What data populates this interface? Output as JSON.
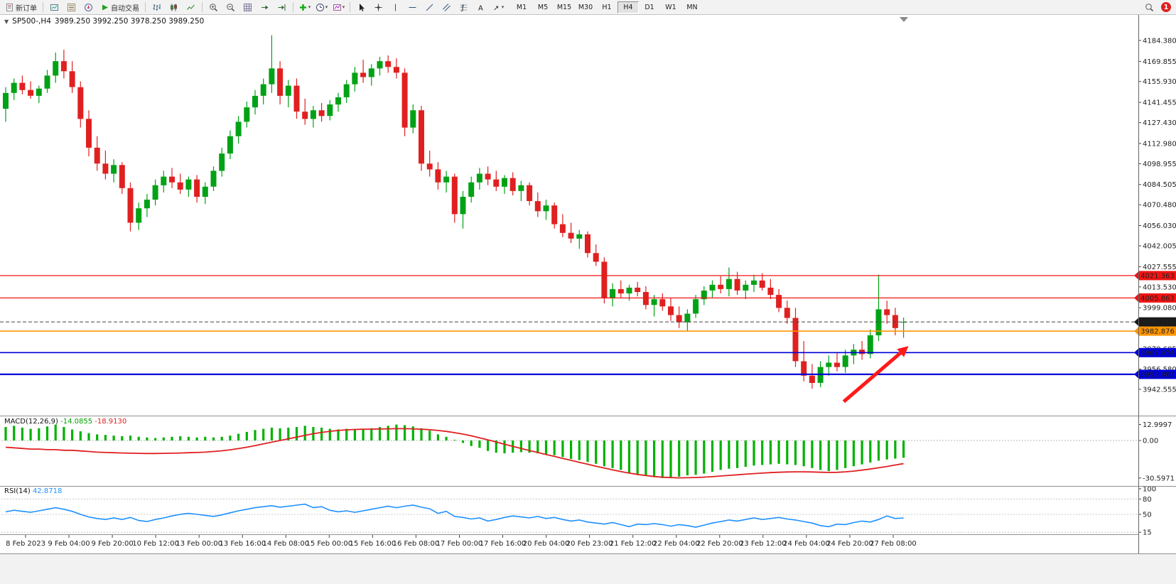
{
  "toolbar": {
    "new_order_label": "新订单",
    "auto_trading_label": "自动交易",
    "timeframes": [
      "M1",
      "M5",
      "M15",
      "M30",
      "H1",
      "H4",
      "D1",
      "W1",
      "MN"
    ],
    "active_timeframe": "H4",
    "notification_count": "1"
  },
  "chart_header": {
    "symbol_timeframe": "SP500-,H4",
    "ohlc_values": "3989.250 3992.250 3978.250 3989.250"
  },
  "chart_data": {
    "type": "candlestick",
    "symbol": "SP500-",
    "timeframe": "H4",
    "current_bar": {
      "open": 3989.25,
      "high": 3992.25,
      "low": 3978.25,
      "close": 3989.25
    },
    "colors": {
      "up": "#00A215",
      "down": "#E02020"
    },
    "ylim": [
      3925.3,
      4193.7
    ],
    "y_axis_labels": [
      "4184.380",
      "4169.855",
      "4155.930",
      "4141.455",
      "4127.430",
      "4112.980",
      "4098.955",
      "4084.505",
      "4070.480",
      "4056.030",
      "4042.005",
      "4027.555",
      "4013.530",
      "3999.080",
      "3985.055",
      "3970.605",
      "3956.580",
      "3942.555"
    ],
    "x_labels": [
      "8 Feb 2023",
      "9 Feb 04:00",
      "9 Feb 20:00",
      "10 Feb 12:00",
      "13 Feb 00:00",
      "13 Feb 16:00",
      "14 Feb 08:00",
      "15 Feb 00:00",
      "15 Feb 16:00",
      "16 Feb 08:00",
      "17 Feb 00:00",
      "17 Feb 16:00",
      "20 Feb 04:00",
      "20 Feb 23:00",
      "21 Feb 12:00",
      "22 Feb 04:00",
      "22 Feb 20:00",
      "23 Feb 12:00",
      "24 Feb 04:00",
      "24 Feb 20:00",
      "27 Feb 08:00"
    ],
    "horizontal_lines": [
      {
        "label": "4021.363",
        "price": 4021.363,
        "color": "#F01414",
        "width": 1.3
      },
      {
        "label": "4005.863",
        "price": 4005.863,
        "color": "#F01414",
        "width": 1.3
      },
      {
        "label": "3989.250",
        "price": 3989.25,
        "color": "#444444",
        "width": 1,
        "style": "dashed",
        "badge": "#1a1a1a"
      },
      {
        "label": "3982.876",
        "price": 3982.876,
        "color": "#FF9500",
        "width": 1.6
      },
      {
        "label": "3967.974",
        "price": 3967.974,
        "color": "#0000D8",
        "width": 1.6
      },
      {
        "label": "3952.905",
        "price": 3952.905,
        "color": "#0000D8",
        "width": 2.2
      }
    ],
    "trend_arrow": {
      "from_bar": 100.8,
      "from_price": 3934,
      "to_bar": 108.6,
      "to_price": 3972.5,
      "color": "#FF1A1A"
    },
    "candles_ohlc": [
      [
        4137,
        4152,
        4128,
        4148
      ],
      [
        4148,
        4158,
        4143,
        4155
      ],
      [
        4155,
        4160,
        4147,
        4150
      ],
      [
        4150,
        4156,
        4144,
        4146
      ],
      [
        4146,
        4153,
        4141,
        4151
      ],
      [
        4151,
        4164,
        4148,
        4160
      ],
      [
        4160,
        4176,
        4155,
        4170
      ],
      [
        4170,
        4178,
        4158,
        4163
      ],
      [
        4163,
        4170,
        4148,
        4152
      ],
      [
        4152,
        4156,
        4124,
        4130
      ],
      [
        4130,
        4136,
        4104,
        4110
      ],
      [
        4110,
        4118,
        4094,
        4099
      ],
      [
        4099,
        4108,
        4088,
        4092
      ],
      [
        4092,
        4102,
        4086,
        4098
      ],
      [
        4098,
        4100,
        4078,
        4082
      ],
      [
        4082,
        4086,
        4052,
        4058
      ],
      [
        4058,
        4072,
        4053,
        4068
      ],
      [
        4068,
        4078,
        4062,
        4074
      ],
      [
        4074,
        4088,
        4070,
        4084
      ],
      [
        4084,
        4094,
        4079,
        4090
      ],
      [
        4090,
        4096,
        4082,
        4086
      ],
      [
        4086,
        4092,
        4078,
        4081
      ],
      [
        4081,
        4090,
        4076,
        4088
      ],
      [
        4088,
        4091,
        4072,
        4076
      ],
      [
        4076,
        4086,
        4071,
        4083
      ],
      [
        4083,
        4097,
        4080,
        4094
      ],
      [
        4094,
        4110,
        4090,
        4106
      ],
      [
        4106,
        4122,
        4102,
        4118
      ],
      [
        4118,
        4132,
        4113,
        4128
      ],
      [
        4128,
        4142,
        4124,
        4138
      ],
      [
        4138,
        4150,
        4133,
        4146
      ],
      [
        4146,
        4158,
        4140,
        4154
      ],
      [
        4154,
        4188,
        4148,
        4165
      ],
      [
        4165,
        4170,
        4140,
        4146
      ],
      [
        4146,
        4157,
        4138,
        4153
      ],
      [
        4153,
        4158,
        4130,
        4135
      ],
      [
        4135,
        4144,
        4126,
        4130
      ],
      [
        4130,
        4139,
        4124,
        4136
      ],
      [
        4136,
        4141,
        4128,
        4132
      ],
      [
        4132,
        4143,
        4129,
        4140
      ],
      [
        4140,
        4148,
        4135,
        4145
      ],
      [
        4145,
        4157,
        4141,
        4154
      ],
      [
        4154,
        4166,
        4149,
        4162
      ],
      [
        4162,
        4171,
        4155,
        4159
      ],
      [
        4159,
        4168,
        4153,
        4165
      ],
      [
        4165,
        4173,
        4160,
        4170
      ],
      [
        4170,
        4174,
        4162,
        4166
      ],
      [
        4166,
        4172,
        4158,
        4162
      ],
      [
        4162,
        4165,
        4118,
        4124
      ],
      [
        4124,
        4140,
        4120,
        4136
      ],
      [
        4136,
        4139,
        4094,
        4099
      ],
      [
        4099,
        4108,
        4090,
        4095
      ],
      [
        4095,
        4100,
        4081,
        4086
      ],
      [
        4086,
        4094,
        4079,
        4090
      ],
      [
        4090,
        4092,
        4058,
        4064
      ],
      [
        4064,
        4080,
        4054,
        4076
      ],
      [
        4076,
        4090,
        4072,
        4086
      ],
      [
        4086,
        4096,
        4081,
        4092
      ],
      [
        4092,
        4097,
        4084,
        4088
      ],
      [
        4088,
        4094,
        4080,
        4083
      ],
      [
        4083,
        4091,
        4078,
        4089
      ],
      [
        4089,
        4093,
        4077,
        4080
      ],
      [
        4080,
        4087,
        4073,
        4084
      ],
      [
        4084,
        4086,
        4070,
        4073
      ],
      [
        4073,
        4079,
        4062,
        4066
      ],
      [
        4066,
        4074,
        4060,
        4070
      ],
      [
        4070,
        4072,
        4054,
        4057
      ],
      [
        4057,
        4064,
        4048,
        4051
      ],
      [
        4051,
        4058,
        4044,
        4047
      ],
      [
        4047,
        4053,
        4040,
        4050
      ],
      [
        4050,
        4052,
        4034,
        4037
      ],
      [
        4037,
        4043,
        4028,
        4031
      ],
      [
        4031,
        4034,
        4002,
        4006
      ],
      [
        4006,
        4016,
        4000,
        4012
      ],
      [
        4012,
        4018,
        4006,
        4009
      ],
      [
        4009,
        4015,
        4004,
        4013
      ],
      [
        4013,
        4017,
        4007,
        4010
      ],
      [
        4010,
        4014,
        3998,
        4001
      ],
      [
        4001,
        4008,
        3993,
        4005
      ],
      [
        4005,
        4009,
        3997,
        4000
      ],
      [
        4000,
        4006,
        3990,
        3994
      ],
      [
        3994,
        4000,
        3985,
        3989
      ],
      [
        3989,
        3998,
        3983,
        3995
      ],
      [
        3995,
        4008,
        3992,
        4005
      ],
      [
        4005,
        4014,
        4001,
        4011
      ],
      [
        4011,
        4018,
        4006,
        4015
      ],
      [
        4015,
        4021,
        4009,
        4012
      ],
      [
        4012,
        4027,
        4007,
        4019
      ],
      [
        4019,
        4024,
        4008,
        4011
      ],
      [
        4011,
        4018,
        4005,
        4015
      ],
      [
        4015,
        4022,
        4010,
        4018
      ],
      [
        4018,
        4023,
        4011,
        4013
      ],
      [
        4013,
        4019,
        4005,
        4008
      ],
      [
        4008,
        4012,
        3996,
        3999
      ],
      [
        3999,
        4004,
        3988,
        3992
      ],
      [
        3992,
        3999,
        3958,
        3962
      ],
      [
        3962,
        3976,
        3948,
        3952
      ],
      [
        3952,
        3960,
        3943,
        3947
      ],
      [
        3947,
        3962,
        3944,
        3958
      ],
      [
        3958,
        3966,
        3952,
        3961
      ],
      [
        3961,
        3968,
        3955,
        3958
      ],
      [
        3958,
        3970,
        3954,
        3966
      ],
      [
        3966,
        3974,
        3960,
        3970
      ],
      [
        3970,
        3976,
        3963,
        3967
      ],
      [
        3967,
        3984,
        3964,
        3980
      ],
      [
        3980,
        4022,
        3976,
        3998
      ],
      [
        3998,
        4004,
        3988,
        3994
      ],
      [
        3994,
        3999,
        3980,
        3985
      ],
      [
        3989.25,
        3992.25,
        3978.25,
        3989.25
      ]
    ],
    "indicators": [
      {
        "type": "macd",
        "label": "MACD(12,26,9)",
        "value_main": "-14.0855",
        "value_signal": "-18.9130",
        "y_tick_labels": [
          "12.9997",
          "0.00",
          "-30.5971"
        ],
        "colors": {
          "histogram": "#00B200",
          "signal": "#E02020"
        },
        "histogram": [
          11,
          12,
          10.5,
          9.5,
          10,
          11.5,
          13,
          11,
          9,
          7.5,
          6,
          5,
          4.5,
          4,
          3.5,
          4,
          3,
          2.5,
          2,
          2.5,
          3,
          3.5,
          3,
          2.5,
          3,
          2.5,
          3,
          4,
          5.5,
          7,
          8.5,
          9.5,
          10.5,
          10,
          10.5,
          11,
          12,
          11,
          10.5,
          9.5,
          9,
          9.5,
          9,
          9.5,
          10,
          11,
          12,
          13,
          12.5,
          11.5,
          10,
          8,
          5,
          3,
          0.5,
          -2,
          -4.5,
          -6,
          -8.5,
          -10,
          -10.5,
          -10,
          -9.5,
          -10,
          -10.5,
          -11,
          -12,
          -13.5,
          -15,
          -16,
          -17.5,
          -19,
          -21,
          -22.5,
          -24,
          -26.5,
          -28,
          -29,
          -30,
          -30.6,
          -30,
          -29.5,
          -28.5,
          -28,
          -27,
          -25.5,
          -24,
          -23,
          -22.5,
          -21.5,
          -20.5,
          -20,
          -19.5,
          -19,
          -19.5,
          -20,
          -21,
          -22.5,
          -24,
          -25,
          -24,
          -22.5,
          -21,
          -19.5,
          -18,
          -16.5,
          -15.5,
          -14.8,
          -14.0855
        ],
        "signal": [
          -5.5,
          -6,
          -6.5,
          -7,
          -7,
          -7.5,
          -7.5,
          -8,
          -8,
          -8.5,
          -9,
          -9.5,
          -9.8,
          -10,
          -10.2,
          -10.4,
          -10.5,
          -10.6,
          -10.6,
          -10.5,
          -10.4,
          -10.2,
          -10,
          -9.8,
          -9.5,
          -9,
          -8.4,
          -7.6,
          -6.6,
          -5.5,
          -4.2,
          -2.8,
          -1.4,
          0,
          1.4,
          2.8,
          4.2,
          5.5,
          6.6,
          7.5,
          8.2,
          8.7,
          9,
          9.2,
          9.3,
          9.4,
          9.5,
          9.6,
          9.6,
          9.5,
          9.2,
          8.8,
          8.2,
          7.4,
          6.4,
          5.2,
          3.8,
          2.2,
          0.5,
          -1.2,
          -3,
          -4.8,
          -6.5,
          -8.2,
          -9.8,
          -11.4,
          -13,
          -14.6,
          -16.2,
          -17.8,
          -19.4,
          -21,
          -22.5,
          -24,
          -25.4,
          -26.6,
          -27.7,
          -28.6,
          -29.4,
          -30,
          -30.3,
          -30.5,
          -30.4,
          -30.2,
          -29.9,
          -29.5,
          -29,
          -28.5,
          -28,
          -27.5,
          -27,
          -26.6,
          -26.2,
          -25.9,
          -25.7,
          -25.6,
          -25.6,
          -25.7,
          -25.9,
          -26.1,
          -26,
          -25.6,
          -25,
          -24.2,
          -23.3,
          -22.3,
          -21.2,
          -20,
          -18.913
        ]
      },
      {
        "type": "rsi",
        "label": "RSI(14)",
        "value": "42.8718",
        "color": "#1E90FF",
        "y_tick_labels": [
          "100",
          "80",
          "50",
          "15"
        ],
        "values": [
          55,
          58,
          56,
          54,
          57,
          60,
          63,
          60,
          56,
          50,
          45,
          42,
          40,
          43,
          40,
          44,
          38,
          36,
          40,
          43,
          47,
          50,
          52,
          50,
          48,
          46,
          49,
          53,
          57,
          60,
          63,
          65,
          67,
          64,
          66,
          68,
          70,
          63,
          65,
          58,
          55,
          57,
          54,
          57,
          60,
          63,
          66,
          63,
          66,
          68,
          64,
          61,
          52,
          56,
          46,
          44,
          41,
          43,
          37,
          40,
          44,
          47,
          45,
          43,
          46,
          42,
          44,
          40,
          37,
          39,
          35,
          33,
          31,
          34,
          30,
          26,
          31,
          30,
          32,
          30,
          27,
          30,
          28,
          25,
          29,
          33,
          36,
          39,
          37,
          40,
          43,
          40,
          42,
          44,
          41,
          39,
          36,
          33,
          28,
          26,
          31,
          30,
          34,
          37,
          35,
          40,
          47,
          42,
          42.8718
        ]
      }
    ]
  }
}
